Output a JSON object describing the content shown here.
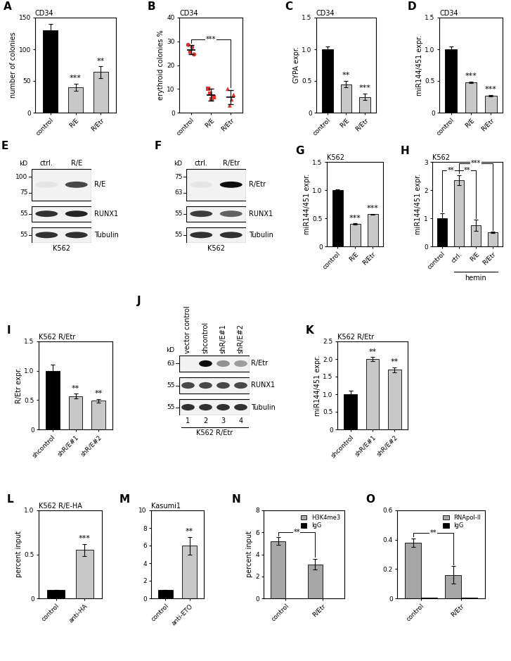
{
  "chart_data": [
    {
      "panel": "A",
      "type": "bar",
      "annotation": "CD34",
      "y_label": "number of colonies",
      "categories": [
        "control",
        "R/E",
        "R/Etr"
      ],
      "values": [
        130,
        40,
        64
      ],
      "errors": [
        10,
        6,
        9
      ],
      "colors": [
        "#000000",
        "#c8c8c8",
        "#c8c8c8"
      ],
      "significance": [
        null,
        "***",
        "**"
      ],
      "ylim": [
        0,
        150
      ],
      "yticks": [
        0,
        50,
        100,
        150
      ]
    },
    {
      "panel": "B",
      "type": "scatter",
      "annotation": "CD34",
      "y_label": "erythroid colonies %",
      "categories": [
        "control",
        "R/E",
        "R/Etr"
      ],
      "points": [
        [
          28.5,
          25.5,
          27.5,
          24.5
        ],
        [
          10,
          8,
          5.5,
          6.5
        ],
        [
          10,
          3,
          5.5,
          7.5
        ]
      ],
      "values": [
        26.5,
        7.5,
        6.5
      ],
      "errors": [
        2,
        2.5,
        3
      ],
      "color": "#e0332b",
      "markers": [
        "o",
        "s",
        "^"
      ],
      "brackets": [
        {
          "from": "control",
          "to": "R/Etr",
          "label": "***"
        }
      ],
      "ylim": [
        0,
        40
      ],
      "yticks": [
        0,
        10,
        20,
        30,
        40
      ]
    },
    {
      "panel": "C",
      "type": "bar",
      "annotation": "CD34",
      "y_label": "GYPA expr.",
      "categories": [
        "control",
        "R/E",
        "R/Etr"
      ],
      "values": [
        1.0,
        0.45,
        0.25
      ],
      "errors": [
        0.04,
        0.05,
        0.05
      ],
      "colors": [
        "#000000",
        "#c8c8c8",
        "#c8c8c8"
      ],
      "significance": [
        null,
        "**",
        "***"
      ],
      "ylim": [
        0,
        1.5
      ],
      "yticks": [
        0,
        0.5,
        1.0,
        1.5
      ]
    },
    {
      "panel": "D",
      "type": "bar",
      "annotation": "CD34",
      "y_label": "miR144/451 expr.",
      "categories": [
        "control",
        "R/E",
        "R/Etr"
      ],
      "values": [
        1.0,
        0.48,
        0.27
      ],
      "errors": [
        0.04,
        0.01,
        0.01
      ],
      "colors": [
        "#000000",
        "#c8c8c8",
        "#c8c8c8"
      ],
      "significance": [
        null,
        "***",
        "***"
      ],
      "ylim": [
        0,
        1.5
      ],
      "yticks": [
        0,
        0.5,
        1.0,
        1.5
      ]
    },
    {
      "panel": "E",
      "type": "blot",
      "kd_label": "kD",
      "cell_line": "K562",
      "lanes": [
        "ctrl.",
        "R/E"
      ],
      "bands": [
        {
          "name": "R/E",
          "kd": [
            100,
            75
          ],
          "intensity": [
            0.05,
            0.7
          ]
        },
        {
          "name": "RUNX1",
          "kd": [
            55
          ],
          "intensity": [
            0.8,
            0.85
          ]
        },
        {
          "name": "Tubulin",
          "kd": [
            55
          ],
          "intensity": [
            0.8,
            0.8
          ]
        }
      ]
    },
    {
      "panel": "F",
      "type": "blot",
      "kd_label": "kD",
      "cell_line": "K562",
      "lanes": [
        "ctrl.",
        "R/Etr"
      ],
      "bands": [
        {
          "name": "R/Etr",
          "kd": [
            75,
            63
          ],
          "intensity": [
            0.05,
            0.95
          ]
        },
        {
          "name": "RUNX1",
          "kd": [
            55
          ],
          "intensity": [
            0.75,
            0.6
          ]
        },
        {
          "name": "Tubulin",
          "kd": [
            55
          ],
          "intensity": [
            0.8,
            0.8
          ]
        }
      ]
    },
    {
      "panel": "G",
      "type": "bar",
      "annotation": "K562",
      "y_label": "miR144/451 expr.",
      "categories": [
        "control",
        "R/E",
        "R/Etr"
      ],
      "values": [
        1.0,
        0.4,
        0.57
      ],
      "errors": [
        0.01,
        0.01,
        0.01
      ],
      "colors": [
        "#000000",
        "#c8c8c8",
        "#c8c8c8"
      ],
      "significance": [
        null,
        "***",
        "***"
      ],
      "ylim": [
        0,
        1.5
      ],
      "yticks": [
        0,
        0.5,
        1.0,
        1.5
      ]
    },
    {
      "panel": "H",
      "type": "bar",
      "annotation": "K562",
      "y_label": "miR144/451 expr.",
      "categories": [
        "control",
        "ctrl.",
        "R/E",
        "R/Etr"
      ],
      "values": [
        1.0,
        2.35,
        0.75,
        0.5
      ],
      "errors": [
        0.17,
        0.18,
        0.2,
        0.02
      ],
      "colors": [
        "#000000",
        "#c8c8c8",
        "#c8c8c8",
        "#c8c8c8"
      ],
      "group_label": {
        "text": "hemin",
        "categories": [
          "ctrl.",
          "R/E",
          "R/Etr"
        ]
      },
      "brackets": [
        {
          "from": "control",
          "to": "ctrl.",
          "label": "**"
        },
        {
          "from": "ctrl.",
          "to": "R/E",
          "label": "**"
        },
        {
          "from": "ctrl.",
          "to": "R/Etr",
          "label": "***"
        }
      ],
      "ylim": [
        0,
        3
      ],
      "yticks": [
        0,
        1,
        2,
        3
      ]
    },
    {
      "panel": "I",
      "type": "bar",
      "annotation": "K562 R/Etr",
      "y_label": "R/Etr expr.",
      "categories": [
        "shcontrol",
        "shR/E#1",
        "shR/E#2"
      ],
      "values": [
        1.0,
        0.57,
        0.49
      ],
      "errors": [
        0.1,
        0.04,
        0.03
      ],
      "colors": [
        "#000000",
        "#c8c8c8",
        "#c8c8c8"
      ],
      "significance": [
        null,
        "**",
        "**"
      ],
      "ylim": [
        0,
        1.5
      ],
      "yticks": [
        0,
        0.5,
        1.0,
        1.5
      ]
    },
    {
      "panel": "J",
      "type": "blot",
      "kd_label": "kD",
      "cell_line": "K562 R/Etr",
      "lanes": [
        "vector control",
        "shcontrol",
        "shR/E#1",
        "shR/E#2"
      ],
      "lane_numbers": [
        "1",
        "2",
        "3",
        "4"
      ],
      "bands": [
        {
          "name": "R/Etr",
          "kd": [
            63
          ],
          "intensity": [
            0.0,
            0.95,
            0.4,
            0.35
          ]
        },
        {
          "name": "RUNX1",
          "kd": [
            55
          ],
          "intensity": [
            0.7,
            0.7,
            0.7,
            0.7
          ]
        },
        {
          "name": "Tubulin",
          "kd": [
            55
          ],
          "intensity": [
            0.8,
            0.8,
            0.8,
            0.8
          ]
        }
      ]
    },
    {
      "panel": "K",
      "type": "bar",
      "annotation": "K562 R/Etr",
      "y_label": "miR144/451 expr.",
      "categories": [
        "shcontrol",
        "shR/E#1",
        "shR/E#2"
      ],
      "values": [
        1.0,
        2.0,
        1.7
      ],
      "errors": [
        0.1,
        0.06,
        0.07
      ],
      "colors": [
        "#000000",
        "#c8c8c8",
        "#c8c8c8"
      ],
      "significance": [
        null,
        "**",
        "**"
      ],
      "ylim": [
        0,
        2.5
      ],
      "yticks": [
        0,
        0.5,
        1.0,
        1.5,
        2.0,
        2.5
      ]
    },
    {
      "panel": "L",
      "type": "bar",
      "annotation": "K562 R/E-HA",
      "y_label": "percent input",
      "categories": [
        "control",
        "anti-HA"
      ],
      "values": [
        0.1,
        0.55
      ],
      "errors": [
        0,
        0.07
      ],
      "colors": [
        "#000000",
        "#c8c8c8"
      ],
      "significance": [
        null,
        "***"
      ],
      "ylim": [
        0,
        1.0
      ],
      "yticks": [
        0,
        0.5,
        1.0
      ]
    },
    {
      "panel": "M",
      "type": "bar",
      "annotation": "Kasumi1",
      "categories": [
        "control",
        "anti-ETO"
      ],
      "values": [
        1,
        6
      ],
      "errors": [
        0,
        1
      ],
      "colors": [
        "#000000",
        "#c8c8c8"
      ],
      "significance": [
        null,
        "**"
      ],
      "ylim": [
        0,
        10
      ],
      "yticks": [
        0,
        2,
        4,
        6,
        8,
        10
      ]
    },
    {
      "panel": "N",
      "type": "bar",
      "y_label": "percent input",
      "categories": [
        "control",
        "R/Etr"
      ],
      "series": [
        {
          "name": "H3K4me3",
          "color": "#a6a6a6",
          "values": [
            5.2,
            3.1
          ],
          "errors": [
            0.35,
            0.5
          ]
        },
        {
          "name": "IgG",
          "color": "#000000",
          "values": [
            0.03,
            0.03
          ]
        }
      ],
      "legend": "upper right",
      "brackets": [
        {
          "from": "control",
          "to": "R/Etr",
          "label": "**"
        }
      ],
      "ylim": [
        0,
        8
      ],
      "yticks": [
        0,
        2,
        4,
        6,
        8
      ]
    },
    {
      "panel": "O",
      "type": "bar",
      "categories": [
        "control",
        "R/Etr"
      ],
      "series": [
        {
          "name": "RNApol-II",
          "color": "#a6a6a6",
          "values": [
            0.38,
            0.16
          ],
          "errors": [
            0.03,
            0.06
          ]
        },
        {
          "name": "IgG",
          "color": "#000000",
          "values": [
            0.004,
            0.004
          ]
        }
      ],
      "legend": "upper right",
      "brackets": [
        {
          "from": "control",
          "to": "R/Etr",
          "label": "**"
        }
      ],
      "ylim": [
        0,
        0.6
      ],
      "yticks": [
        0,
        0.2,
        0.4,
        0.6
      ]
    }
  ]
}
